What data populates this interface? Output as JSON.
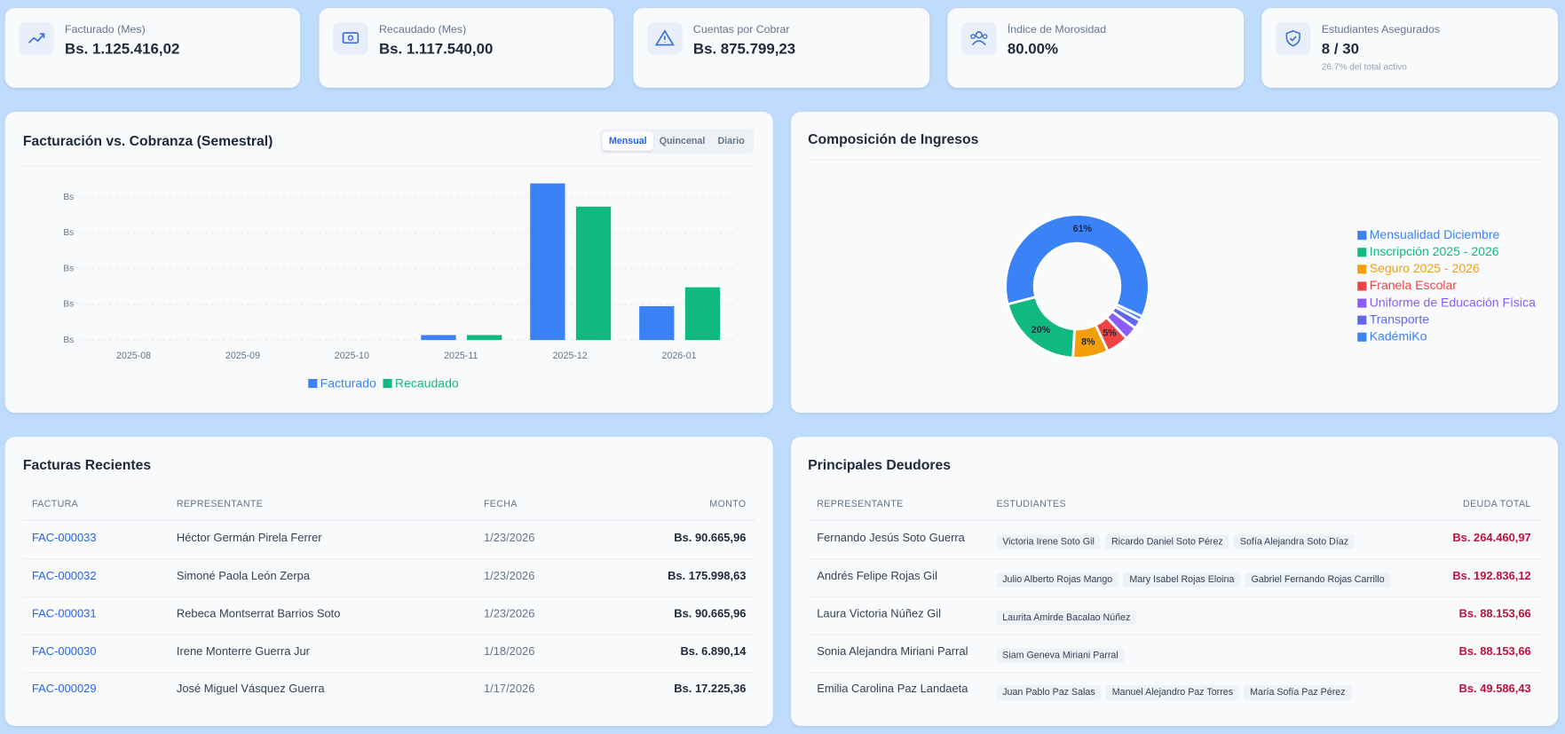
{
  "kpis": [
    {
      "label": "Facturado (Mes)",
      "value": "Bs. 1.125.416,02"
    },
    {
      "label": "Recaudado (Mes)",
      "value": "Bs. 1.117.540,00"
    },
    {
      "label": "Cuentas por Cobrar",
      "value": "Bs. 875.799,23"
    },
    {
      "label": "Índice de Morosidad",
      "value": "80.00%"
    },
    {
      "label": "Estudiantes Asegurados",
      "value": "8 / 30",
      "note": "26.7% del total activo"
    }
  ],
  "period_buttons": [
    "Mensual",
    "Quincenal",
    "Diario"
  ],
  "chart_data": [
    {
      "type": "bar",
      "title": "Facturación vs. Cobranza (Semestral)",
      "categories": [
        "2025-08",
        "2025-09",
        "2025-10",
        "2025-11",
        "2025-12",
        "2026-01"
      ],
      "series": [
        {
          "name": "Facturado",
          "color": "#3b82f6",
          "values": [
            0,
            0,
            0,
            140000,
            4390000,
            950000
          ]
        },
        {
          "name": "Recaudado",
          "color": "#10b981",
          "values": [
            0,
            0,
            0,
            140000,
            3740000,
            1480000
          ]
        }
      ],
      "ylim": [
        0,
        4500000
      ],
      "yticks": [
        {
          "value": 0,
          "label": "Bs"
        },
        {
          "value": 1000000,
          "label": "Bs"
        },
        {
          "value": 2000000,
          "label": "Bs"
        },
        {
          "value": 3000000,
          "label": "Bs"
        },
        {
          "value": 4000000,
          "label": "Bs"
        }
      ],
      "grid": true
    },
    {
      "type": "pie",
      "title": "Composición de Ingresos",
      "categories": [
        "Mensualidad Diciembre",
        "Inscripción 2025 - 2026",
        "Seguro 2025 - 2026",
        "Franela Escolar",
        "Uniforme de Educación Física",
        "Transporte",
        "KadémiKo"
      ],
      "values": [
        61,
        20,
        8,
        5,
        3,
        2,
        1
      ],
      "value_labels": [
        "61%",
        "20%",
        "8%",
        "5%",
        null,
        null,
        null
      ],
      "colors": [
        "#3b82f6",
        "#10b981",
        "#f59e0b",
        "#ef4444",
        "#8b5cf6",
        "#6366f1",
        "#3b82f6"
      ]
    }
  ],
  "recent_invoices": {
    "title": "Facturas Recientes",
    "columns": [
      "FACTURA",
      "REPRESENTANTE",
      "FECHA",
      "MONTO"
    ],
    "rows": [
      [
        "FAC-000033",
        "Héctor Germán Pirela Ferrer",
        "1/23/2026",
        "Bs. 90.665,96"
      ],
      [
        "FAC-000032",
        "Simoné Paola León Zerpa",
        "1/23/2026",
        "Bs. 175.998,63"
      ],
      [
        "FAC-000031",
        "Rebeca Montserrat Barrios Soto",
        "1/23/2026",
        "Bs. 90.665,96"
      ],
      [
        "FAC-000030",
        "Irene Monterre Guerra Jur",
        "1/18/2026",
        "Bs. 6.890,14"
      ],
      [
        "FAC-000029",
        "José Miguel Vásquez Guerra",
        "1/17/2026",
        "Bs. 17.225,36"
      ]
    ]
  },
  "top_debtors": {
    "title": "Principales Deudores",
    "columns": [
      "REPRESENTANTE",
      "ESTUDIANTES",
      "DEUDA TOTAL"
    ],
    "rows": [
      {
        "representative": "Fernando Jesús Soto Guerra",
        "students": [
          "Victoria Irene Soto Gil",
          "Ricardo Daniel Soto Pérez",
          "Sofía Alejandra Soto Díaz"
        ],
        "debt": "Bs. 264.460,97"
      },
      {
        "representative": "Andrés Felipe Rojas Gil",
        "students": [
          "Julio Alberto Rojas Mango",
          "Mary Isabel Rojas Eloina",
          "Gabriel Fernando Rojas Carrillo"
        ],
        "debt": "Bs. 192.836,12"
      },
      {
        "representative": "Laura Victoria Núñez Gil",
        "students": [
          "Laurita Amirde Bacalao Núñez"
        ],
        "debt": "Bs. 88.153,66"
      },
      {
        "representative": "Sonia Alejandra Miriani Parral",
        "students": [
          "Siam Geneva Miriani Parral"
        ],
        "debt": "Bs. 88.153,66"
      },
      {
        "representative": "Emilia Carolina Paz Landaeta",
        "students": [
          "Juan Pablo Paz Salas",
          "Manuel Alejandro Paz Torres",
          "María Sofía Paz Pérez"
        ],
        "debt": "Bs. 49.586,43"
      }
    ]
  }
}
